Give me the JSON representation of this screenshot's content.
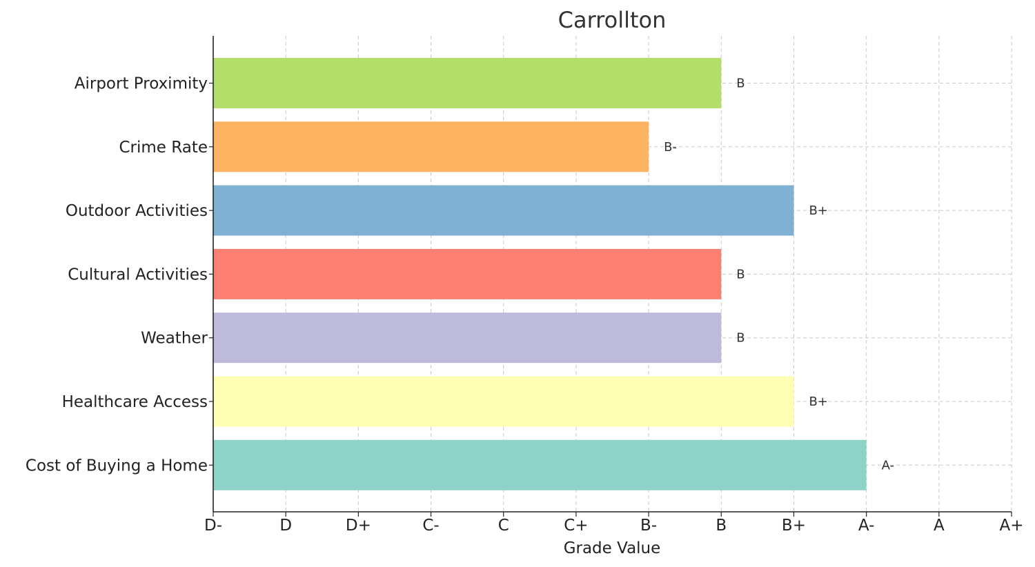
{
  "chart_data": {
    "type": "bar",
    "orientation": "horizontal",
    "title": "Carrollton",
    "xlabel": "Grade Value",
    "ylabel": "",
    "x_ticks": [
      "D-",
      "D",
      "D+",
      "C-",
      "C",
      "C+",
      "B-",
      "B",
      "B+",
      "A-",
      "A",
      "A+"
    ],
    "xlim": [
      0,
      11
    ],
    "grid": true,
    "categories": [
      "Airport Proximity",
      "Crime Rate",
      "Outdoor Activities",
      "Cultural Activities",
      "Weather",
      "Healthcare Access",
      "Cost of Buying a Home"
    ],
    "values": [
      7,
      6,
      8,
      7,
      7,
      8,
      9
    ],
    "value_labels": [
      "B",
      "B-",
      "B+",
      "B",
      "B",
      "B+",
      "A-"
    ],
    "colors": [
      "#b3de69",
      "#fdb462",
      "#80b1d3",
      "#fb8072",
      "#bebada",
      "#ffffb3",
      "#8dd3c7"
    ]
  }
}
